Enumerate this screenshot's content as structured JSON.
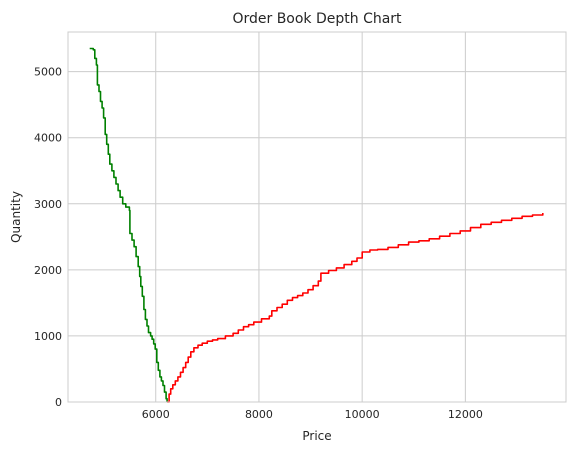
{
  "chart_data": {
    "type": "line",
    "title": "Order Book Depth Chart",
    "xlabel": "Price",
    "ylabel": "Quantity",
    "xlim": [
      4300,
      13950
    ],
    "ylim": [
      0,
      5600
    ],
    "xticks": [
      6000,
      8000,
      10000,
      12000
    ],
    "yticks": [
      0,
      1000,
      2000,
      3000,
      4000,
      5000
    ],
    "grid": true,
    "series": [
      {
        "side": "bid",
        "color": "#008000",
        "points": [
          [
            4720,
            5350
          ],
          [
            4790,
            5330
          ],
          [
            4820,
            5200
          ],
          [
            4850,
            5100
          ],
          [
            4870,
            4800
          ],
          [
            4900,
            4700
          ],
          [
            4930,
            4550
          ],
          [
            4960,
            4450
          ],
          [
            4990,
            4300
          ],
          [
            5020,
            4050
          ],
          [
            5050,
            3900
          ],
          [
            5080,
            3750
          ],
          [
            5110,
            3600
          ],
          [
            5150,
            3500
          ],
          [
            5190,
            3400
          ],
          [
            5230,
            3300
          ],
          [
            5270,
            3200
          ],
          [
            5310,
            3100
          ],
          [
            5360,
            3000
          ],
          [
            5420,
            2950
          ],
          [
            5490,
            2900
          ],
          [
            5500,
            2550
          ],
          [
            5540,
            2450
          ],
          [
            5580,
            2350
          ],
          [
            5620,
            2200
          ],
          [
            5660,
            2050
          ],
          [
            5690,
            1900
          ],
          [
            5710,
            1750
          ],
          [
            5740,
            1600
          ],
          [
            5770,
            1400
          ],
          [
            5800,
            1250
          ],
          [
            5830,
            1150
          ],
          [
            5860,
            1050
          ],
          [
            5900,
            1000
          ],
          [
            5930,
            950
          ],
          [
            5960,
            880
          ],
          [
            5990,
            800
          ],
          [
            6020,
            600
          ],
          [
            6050,
            480
          ],
          [
            6080,
            380
          ],
          [
            6110,
            320
          ],
          [
            6140,
            250
          ],
          [
            6170,
            150
          ],
          [
            6200,
            50
          ],
          [
            6220,
            0
          ]
        ]
      },
      {
        "side": "ask",
        "color": "#ff0000",
        "points": [
          [
            6220,
            0
          ],
          [
            6260,
            120
          ],
          [
            6290,
            200
          ],
          [
            6330,
            260
          ],
          [
            6380,
            320
          ],
          [
            6430,
            380
          ],
          [
            6480,
            450
          ],
          [
            6530,
            520
          ],
          [
            6580,
            600
          ],
          [
            6630,
            680
          ],
          [
            6680,
            760
          ],
          [
            6740,
            820
          ],
          [
            6820,
            860
          ],
          [
            6900,
            890
          ],
          [
            7000,
            920
          ],
          [
            7100,
            940
          ],
          [
            7200,
            960
          ],
          [
            7350,
            1000
          ],
          [
            7500,
            1040
          ],
          [
            7600,
            1090
          ],
          [
            7700,
            1140
          ],
          [
            7800,
            1170
          ],
          [
            7900,
            1210
          ],
          [
            8050,
            1260
          ],
          [
            8200,
            1300
          ],
          [
            8250,
            1380
          ],
          [
            8350,
            1430
          ],
          [
            8450,
            1480
          ],
          [
            8550,
            1540
          ],
          [
            8650,
            1580
          ],
          [
            8750,
            1610
          ],
          [
            8850,
            1650
          ],
          [
            8950,
            1700
          ],
          [
            9050,
            1760
          ],
          [
            9150,
            1830
          ],
          [
            9200,
            1950
          ],
          [
            9350,
            1990
          ],
          [
            9500,
            2030
          ],
          [
            9650,
            2080
          ],
          [
            9800,
            2130
          ],
          [
            9900,
            2180
          ],
          [
            10000,
            2270
          ],
          [
            10150,
            2300
          ],
          [
            10300,
            2310
          ],
          [
            10500,
            2340
          ],
          [
            10700,
            2380
          ],
          [
            10900,
            2420
          ],
          [
            11100,
            2440
          ],
          [
            11300,
            2470
          ],
          [
            11500,
            2510
          ],
          [
            11700,
            2550
          ],
          [
            11900,
            2590
          ],
          [
            12100,
            2640
          ],
          [
            12300,
            2690
          ],
          [
            12500,
            2720
          ],
          [
            12700,
            2750
          ],
          [
            12900,
            2780
          ],
          [
            13100,
            2810
          ],
          [
            13300,
            2830
          ],
          [
            13500,
            2860
          ]
        ]
      }
    ]
  }
}
